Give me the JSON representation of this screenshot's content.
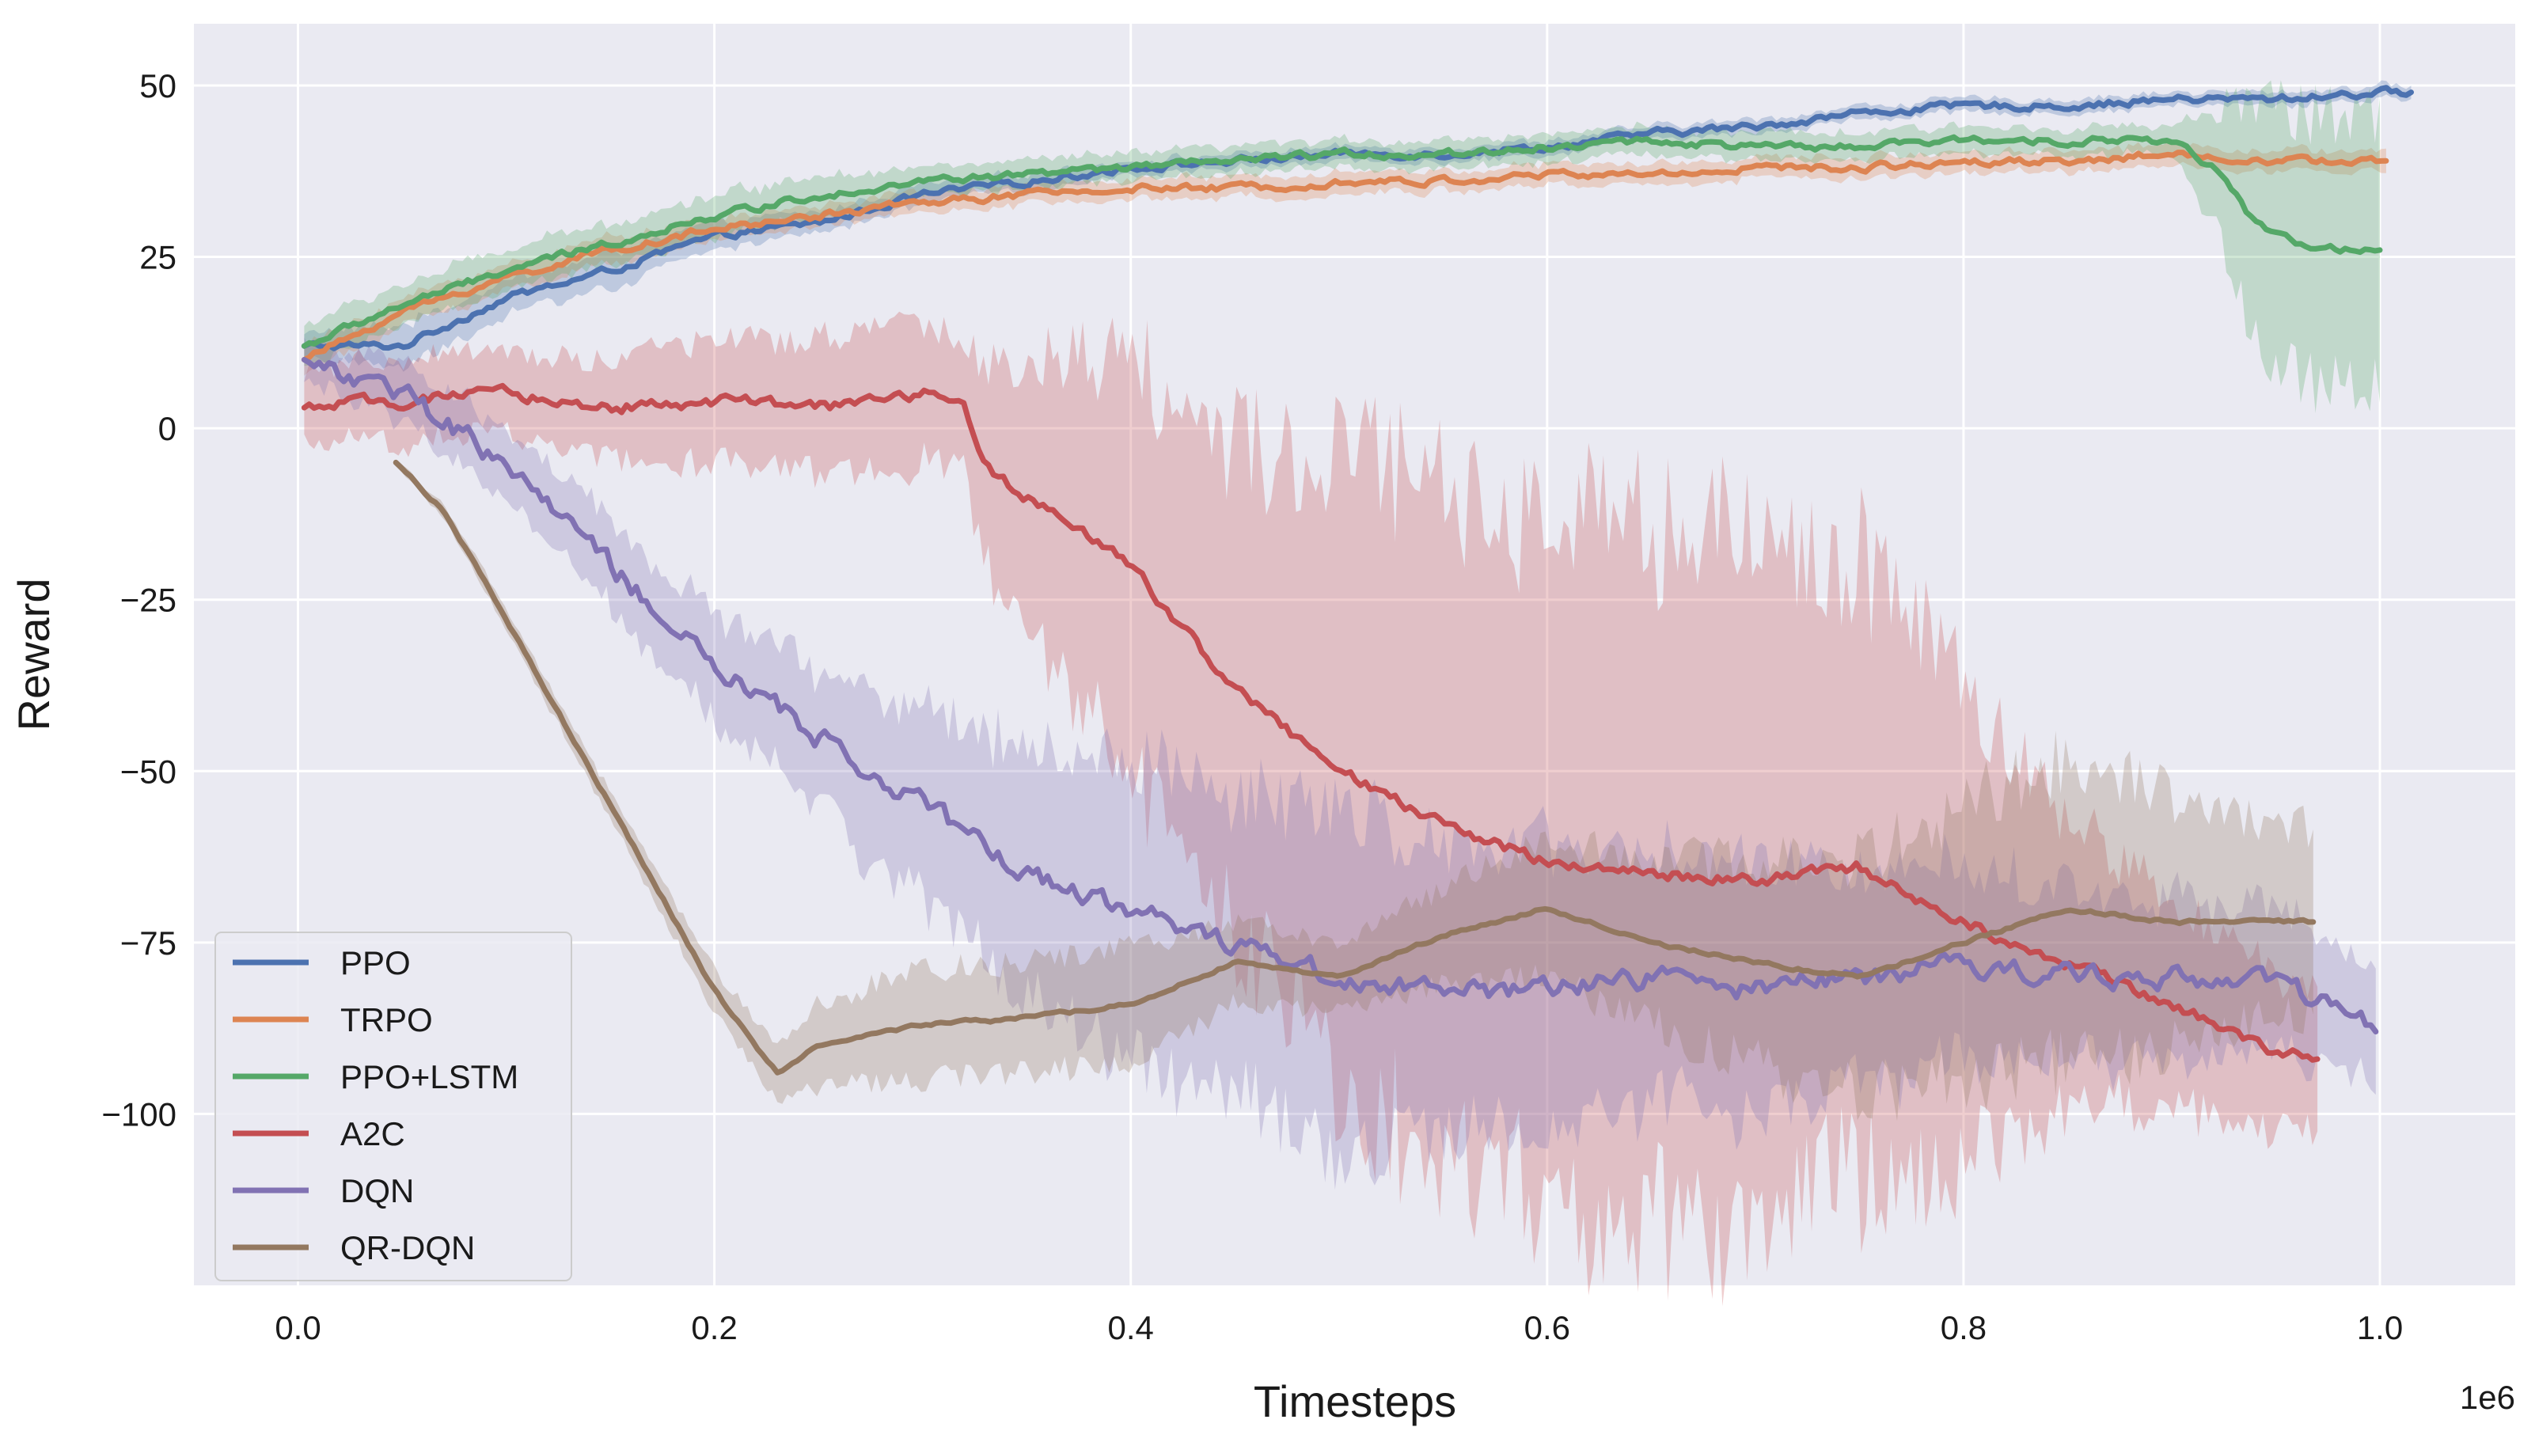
{
  "chart_data": {
    "type": "line",
    "title": "",
    "xlabel": "Timesteps",
    "ylabel": "Reward",
    "x_offset_label": "1e6",
    "xlim": [
      -0.05,
      1.065
    ],
    "ylim": [
      -125,
      59
    ],
    "x_ticks": [
      0.0,
      0.2,
      0.4,
      0.6,
      0.8,
      1.0
    ],
    "x_tick_labels": [
      "0.0",
      "0.2",
      "0.4",
      "0.6",
      "0.8",
      "1.0"
    ],
    "y_ticks": [
      50,
      25,
      0,
      -25,
      -50,
      -75,
      -100
    ],
    "y_tick_labels": [
      "50",
      "25",
      "0",
      "−25",
      "−50",
      "−75",
      "−100"
    ],
    "grid": true,
    "legend_position": "bottom-left",
    "series": [
      {
        "name": "PPO",
        "color": "#4c72b0",
        "x": [
          0.003,
          0.05,
          0.1,
          0.15,
          0.2,
          0.25,
          0.3,
          0.35,
          0.4,
          0.45,
          0.5,
          0.55,
          0.6,
          0.65,
          0.7,
          0.75,
          0.8,
          0.85,
          0.9,
          0.95,
          1.0,
          1.015
        ],
        "y": [
          12,
          12,
          19,
          23,
          28,
          30,
          34,
          36,
          38,
          39,
          40,
          40,
          41,
          43,
          44,
          46,
          47,
          47,
          48,
          48,
          49,
          49
        ],
        "band": [
          2,
          3,
          2.5,
          2.5,
          2,
          1.5,
          1.5,
          1.2,
          1,
          1,
          1,
          1,
          1,
          1,
          1,
          1,
          1,
          1,
          1,
          1,
          1,
          1
        ]
      },
      {
        "name": "TRPO",
        "color": "#dd8452",
        "x": [
          0.003,
          0.05,
          0.1,
          0.15,
          0.2,
          0.25,
          0.3,
          0.35,
          0.4,
          0.45,
          0.5,
          0.55,
          0.6,
          0.65,
          0.7,
          0.75,
          0.8,
          0.85,
          0.9,
          0.95,
          1.003
        ],
        "y": [
          10,
          17,
          22,
          26,
          29,
          31,
          33,
          34,
          35,
          35,
          36,
          36,
          37,
          37,
          38,
          38,
          39,
          39,
          40,
          39,
          39
        ],
        "band": [
          2,
          2,
          2,
          2,
          1.5,
          1.5,
          1.5,
          1.5,
          1.5,
          1.5,
          1.5,
          1.5,
          1.5,
          1.5,
          1.5,
          1.5,
          1.5,
          1.5,
          1.5,
          1.5,
          1.5
        ]
      },
      {
        "name": "PPO+LSTM",
        "color": "#55a868",
        "x": [
          0.003,
          0.05,
          0.1,
          0.15,
          0.2,
          0.25,
          0.3,
          0.35,
          0.4,
          0.45,
          0.5,
          0.55,
          0.6,
          0.65,
          0.7,
          0.75,
          0.8,
          0.85,
          0.9,
          0.92,
          0.94,
          0.96,
          0.98,
          1.0
        ],
        "y": [
          12,
          18,
          23,
          27,
          31,
          34,
          36,
          37,
          38,
          39,
          40,
          40,
          41,
          42,
          41,
          41,
          42,
          42,
          42,
          38,
          30,
          27,
          26,
          26
        ],
        "band": [
          3,
          3,
          3,
          3,
          3,
          3,
          2,
          2,
          2,
          2,
          2,
          2,
          2,
          2,
          2,
          2,
          2,
          2,
          2,
          8,
          18,
          20,
          20,
          20
        ]
      },
      {
        "name": "A2C",
        "color": "#c44e52",
        "x": [
          0.003,
          0.05,
          0.1,
          0.15,
          0.2,
          0.25,
          0.3,
          0.32,
          0.33,
          0.35,
          0.4,
          0.45,
          0.5,
          0.55,
          0.6,
          0.65,
          0.7,
          0.75,
          0.8,
          0.85,
          0.9,
          0.95,
          0.97
        ],
        "y": [
          3,
          4,
          5,
          3,
          4,
          3,
          5,
          4,
          -6,
          -10,
          -20,
          -38,
          -50,
          -58,
          -63,
          -65,
          -66,
          -64,
          -72,
          -78,
          -84,
          -91,
          -92
        ],
        "band": [
          5,
          6,
          6,
          7,
          9,
          10,
          10,
          10,
          15,
          20,
          30,
          35,
          45,
          50,
          50,
          50,
          50,
          45,
          35,
          20,
          15,
          11,
          10
        ]
      },
      {
        "name": "DQN",
        "color": "#8172b3",
        "x": [
          0.003,
          0.05,
          0.1,
          0.15,
          0.2,
          0.25,
          0.3,
          0.35,
          0.4,
          0.45,
          0.5,
          0.55,
          0.6,
          0.65,
          0.7,
          0.75,
          0.8,
          0.85,
          0.9,
          0.95,
          0.998
        ],
        "y": [
          10,
          5,
          -5,
          -20,
          -35,
          -45,
          -55,
          -65,
          -70,
          -75,
          -80,
          -82,
          -82,
          -80,
          -82,
          -80,
          -78,
          -80,
          -80,
          -80,
          -88
        ],
        "band": [
          3,
          4,
          5,
          6,
          8,
          10,
          15,
          18,
          22,
          22,
          25,
          22,
          20,
          18,
          18,
          16,
          14,
          13,
          12,
          10,
          8
        ]
      },
      {
        "name": "QR-DQN",
        "color": "#937860",
        "x": [
          0.047,
          0.07,
          0.1,
          0.15,
          0.2,
          0.23,
          0.25,
          0.3,
          0.35,
          0.4,
          0.45,
          0.5,
          0.55,
          0.6,
          0.65,
          0.7,
          0.75,
          0.8,
          0.85,
          0.9,
          0.95,
          0.968
        ],
        "y": [
          -5,
          -12,
          -28,
          -55,
          -82,
          -94,
          -90,
          -87,
          -86,
          -84,
          -78,
          -80,
          -74,
          -70,
          -75,
          -78,
          -80,
          -75,
          -70,
          -72,
          -72,
          -72
        ],
        "band": [
          0.5,
          1,
          1.5,
          2,
          3,
          4,
          6,
          8,
          8,
          8,
          6,
          5,
          7,
          10,
          12,
          15,
          17,
          20,
          22,
          18,
          15,
          14
        ]
      }
    ]
  }
}
